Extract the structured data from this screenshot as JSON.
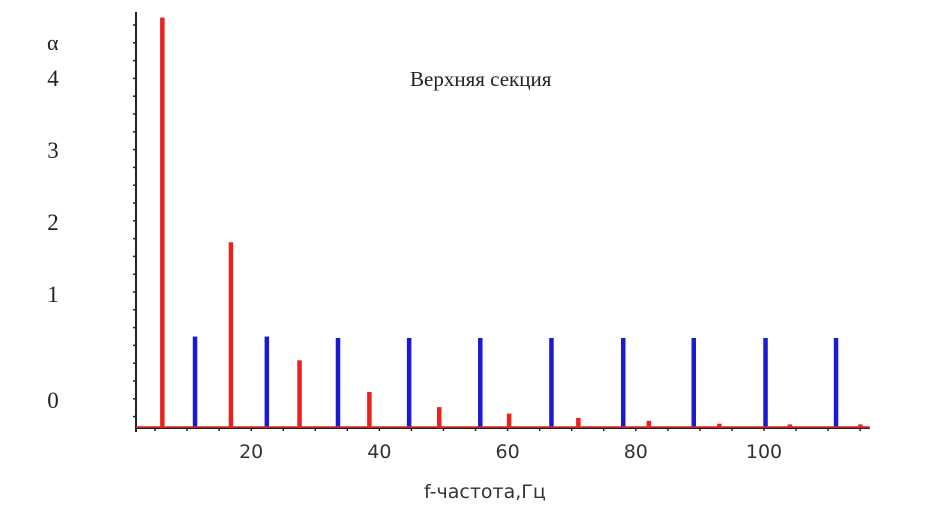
{
  "chart_data": {
    "type": "bar",
    "title": "Верхняя секция",
    "xlabel": "f-частота,Гц",
    "ylabel": "α",
    "xlim": [
      2,
      116.5
    ],
    "x_ticks": [
      "20",
      "40",
      "60",
      "80",
      "100"
    ],
    "y_ticks": [
      "0",
      "1",
      "2",
      "3",
      "4"
    ],
    "grid": false,
    "series": [
      {
        "color": "#e8231f",
        "x": [
          6.1,
          16.8,
          27.5,
          38.4,
          49.3,
          60.2,
          71.0,
          82.0,
          93.0,
          104.0,
          115.0
        ],
        "values": [
          5.7,
          2.58,
          0.94,
          0.5,
          0.29,
          0.2,
          0.14,
          0.1,
          0.06,
          0.05,
          0.05
        ]
      },
      {
        "color": "#1a1ad0",
        "x": [
          11.2,
          22.4,
          33.5,
          44.6,
          55.7,
          66.8,
          78.0,
          89.0,
          100.2,
          111.2
        ],
        "values": [
          1.27,
          1.27,
          1.25,
          1.25,
          1.25,
          1.25,
          1.25,
          1.25,
          1.25,
          1.25
        ]
      }
    ]
  }
}
